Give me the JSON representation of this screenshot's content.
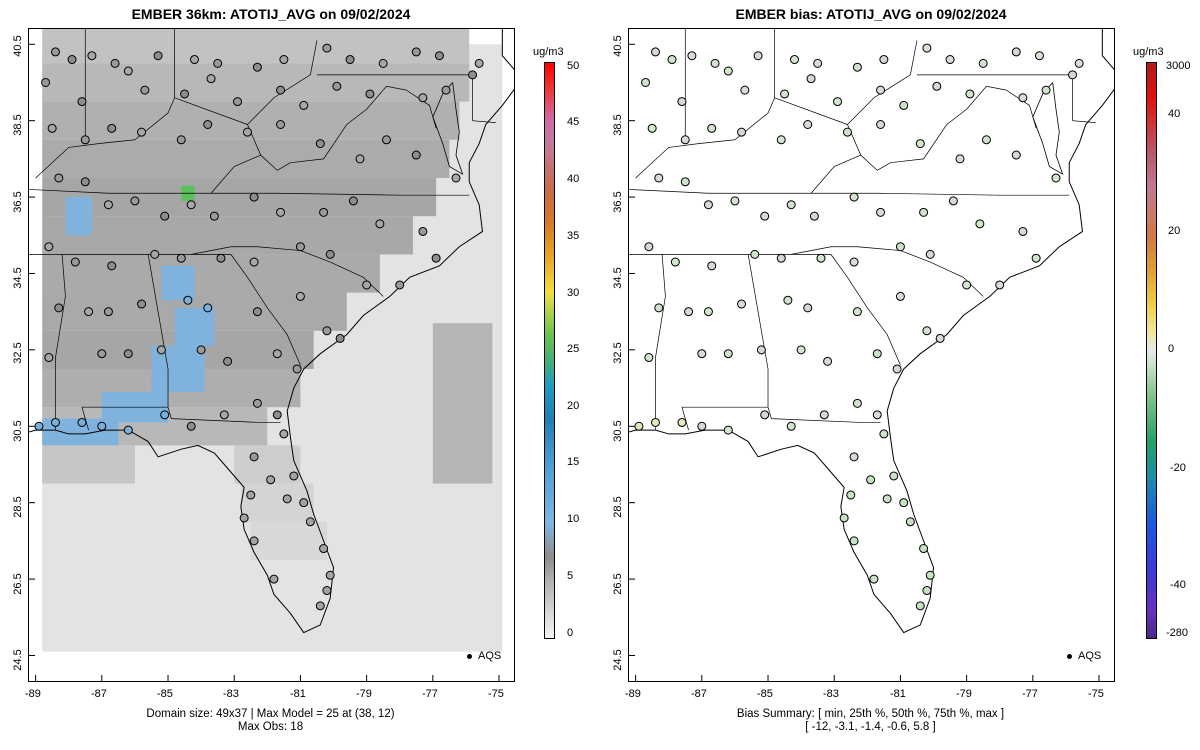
{
  "left_panel": {
    "title": "EMBER 36km: ATOTIJ_AVG on 09/02/2024",
    "footer_line1": "Domain size: 49x37 | Max Model = 25 at (38, 12)",
    "footer_line2": "Max Obs: 18",
    "colorbar_units": "ug/m3",
    "colorbar_labels": [
      "0",
      "5",
      "10",
      "15",
      "20",
      "25",
      "30",
      "35",
      "40",
      "45",
      "50"
    ],
    "legend_label": "AQS"
  },
  "right_panel": {
    "title": "EMBER bias: ATOTIJ_AVG on 09/02/2024",
    "footer_line1": "Bias Summary: [ min, 25th %, 50th %, 75th %, max ]",
    "footer_line2": "[ -12,  -3.1,  -1.4,  -0.6,  5.8 ]",
    "colorbar_units": "ug/m3",
    "colorbar_labels": [
      "-280",
      "-40",
      "-20",
      "0",
      "20",
      "40",
      "3000"
    ],
    "legend_label": "AQS"
  },
  "axes": {
    "x_ticks": [
      "-89",
      "-87",
      "-85",
      "-83",
      "-81",
      "-79",
      "-77",
      "-75"
    ],
    "y_ticks": [
      "24.5",
      "26.5",
      "28.5",
      "30.5",
      "32.5",
      "34.5",
      "36.5",
      "38.5",
      "40.5"
    ]
  },
  "colors": {
    "model_background": "#e3e3e3",
    "model_grey": "#a8a8a8",
    "model_blue": "#6aaee0",
    "model_green": "#5cc05c",
    "bias_neutral": "#d8d8d8",
    "bias_green": "#c6e2c3"
  }
}
